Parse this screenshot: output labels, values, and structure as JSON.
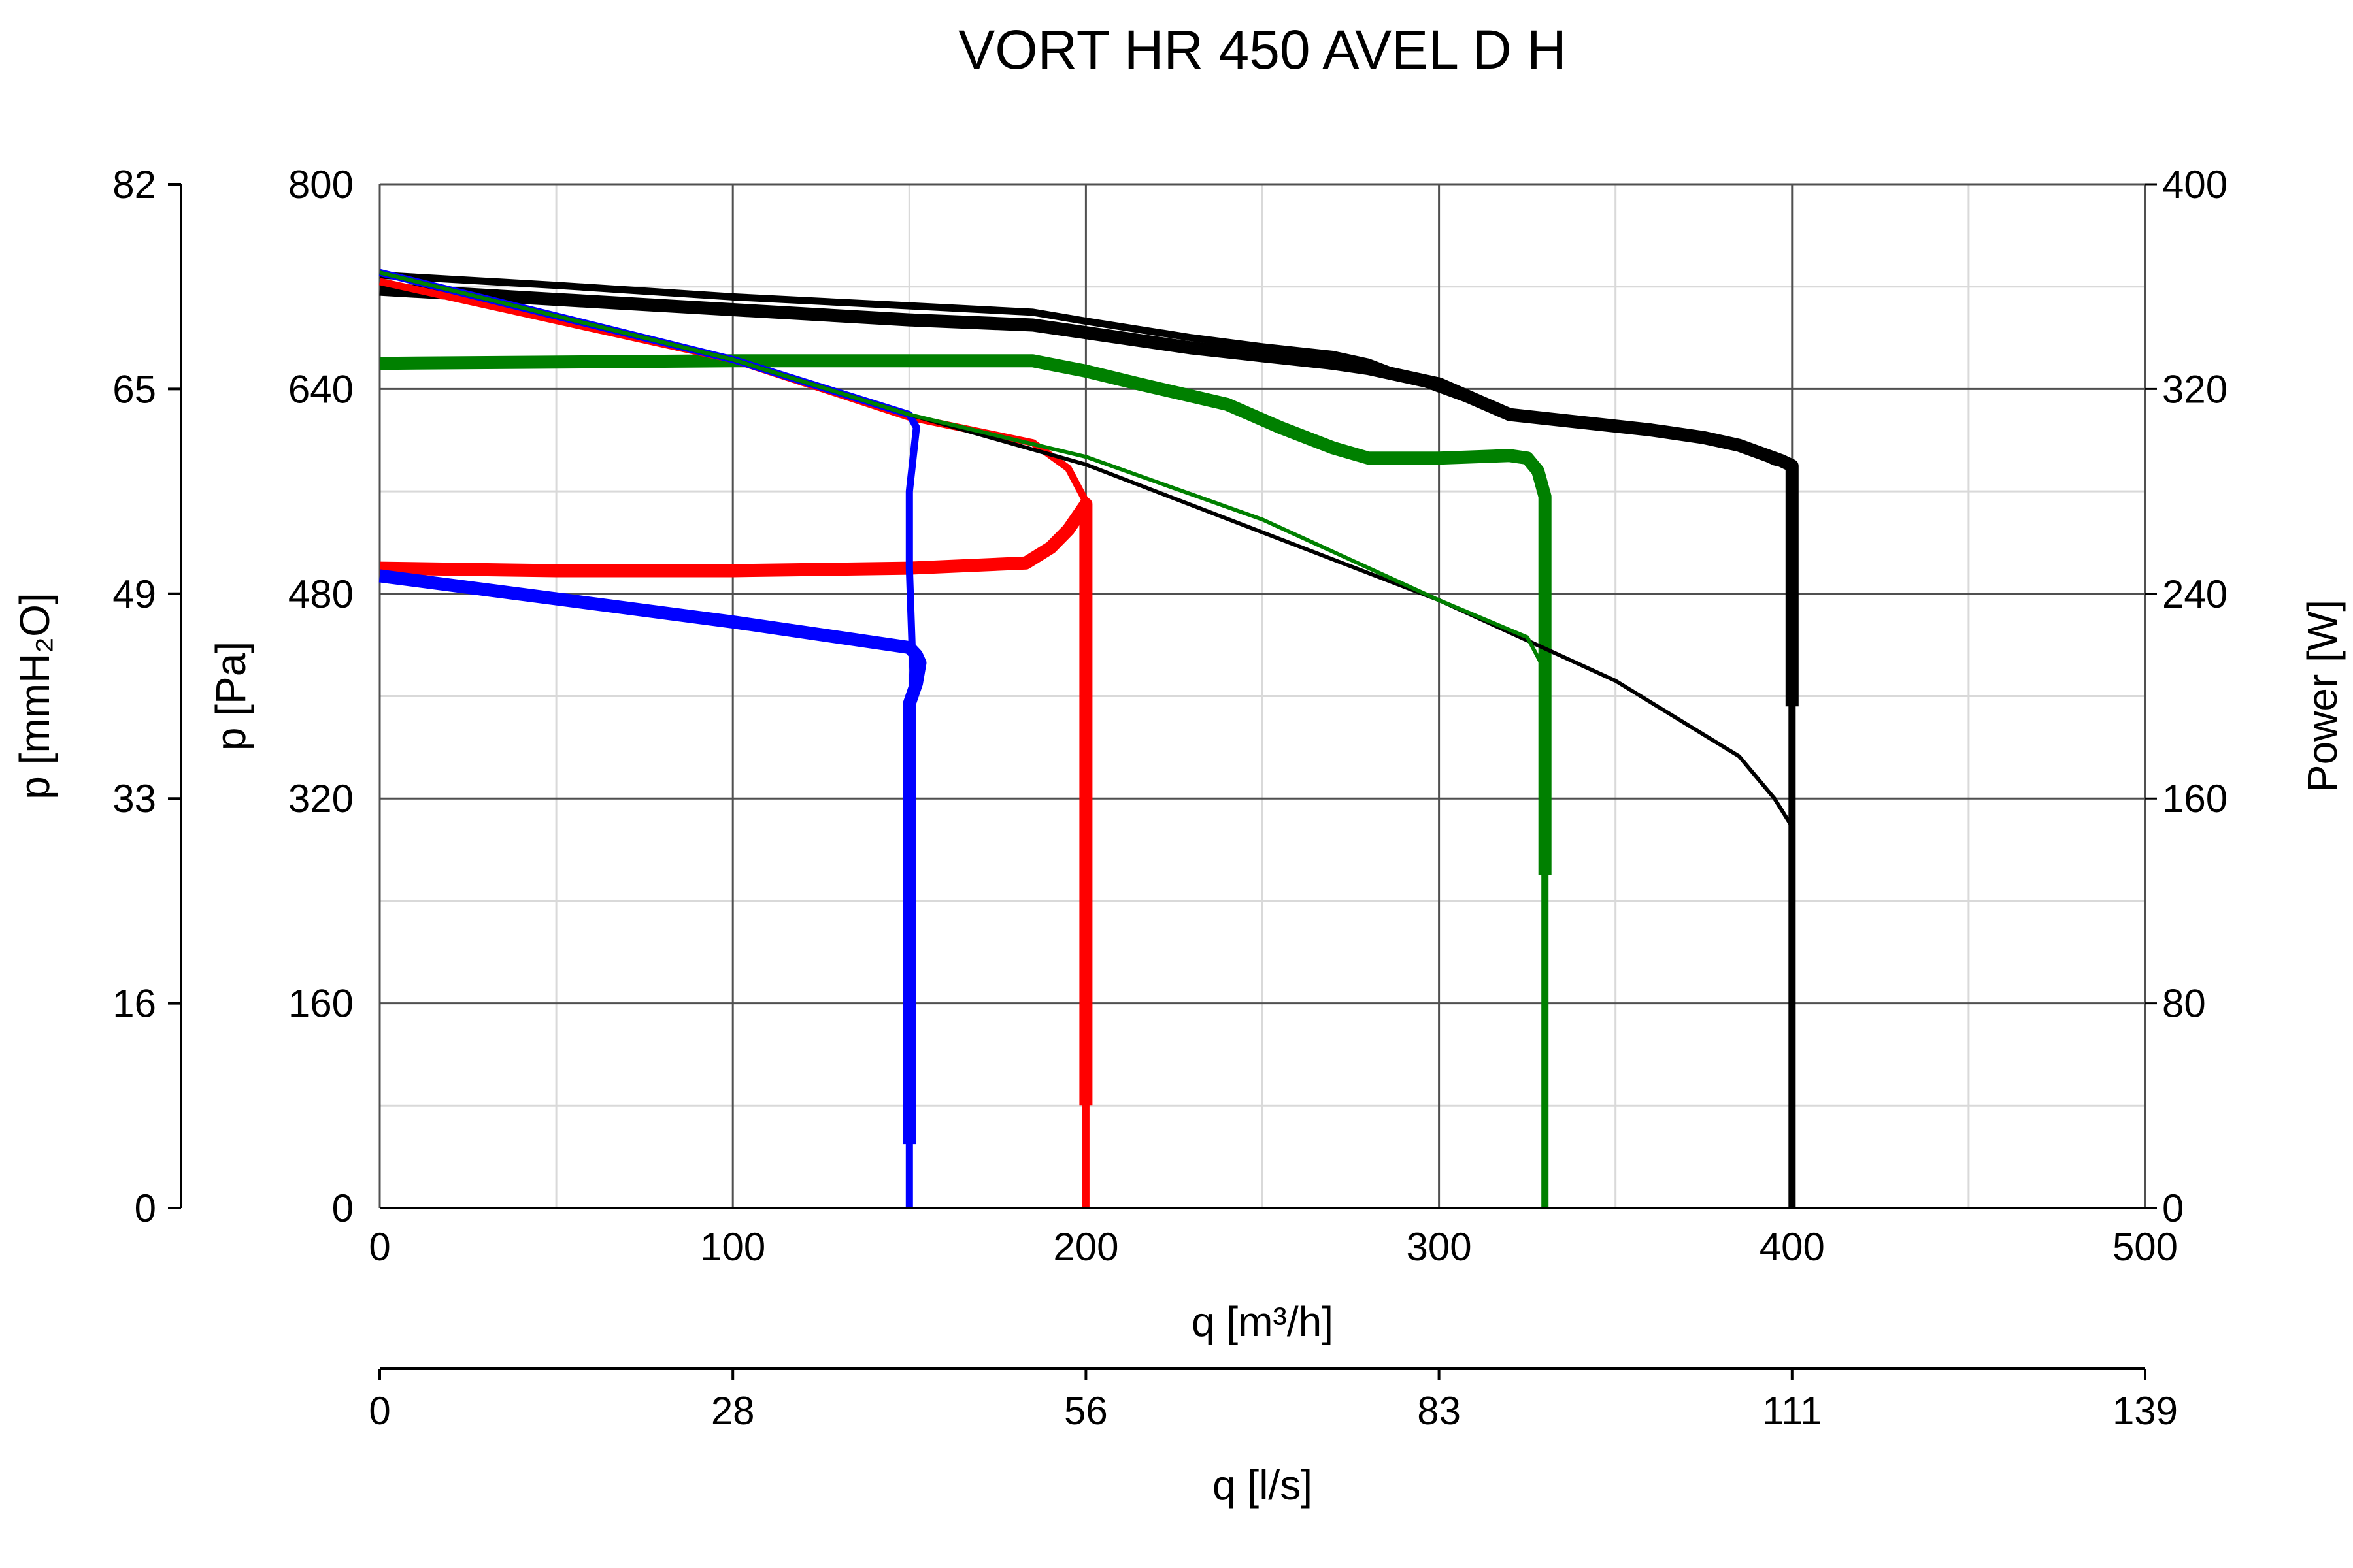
{
  "chart_data": {
    "type": "line",
    "title": "VORT HR 450 AVEL D H",
    "xlabel": "q [m³/h]",
    "xlim": [
      0,
      500
    ],
    "xticks": [
      "0",
      "100",
      "200",
      "300",
      "400",
      "500"
    ],
    "x2label": "q [l/s]",
    "x2ticks": [
      "0",
      "28",
      "56",
      "83",
      "111",
      "139"
    ],
    "ylabel": "p [Pa]",
    "ylim": [
      0,
      800
    ],
    "yticks": [
      "0",
      "160",
      "320",
      "480",
      "640",
      "800"
    ],
    "y2label": "p [mmH₂O]",
    "y2ticks": [
      "0",
      "16",
      "33",
      "49",
      "65",
      "82"
    ],
    "y3label": "Power [W]",
    "y3ticks": [
      "0",
      "80",
      "160",
      "240",
      "320",
      "400"
    ],
    "ylim_power": [
      0,
      400
    ],
    "grid": true,
    "series": [
      {
        "color": "#000000",
        "kind": "pressure",
        "points": [
          [
            0,
            729
          ],
          [
            50,
            721
          ],
          [
            100,
            712
          ],
          [
            150,
            705
          ],
          [
            185,
            700
          ],
          [
            200,
            693
          ],
          [
            230,
            680
          ],
          [
            250,
            673
          ],
          [
            270,
            667
          ],
          [
            280,
            661
          ],
          [
            300,
            640
          ],
          [
            320,
            620
          ],
          [
            340,
            613
          ],
          [
            360,
            608
          ],
          [
            375,
            602
          ],
          [
            385,
            596
          ],
          [
            395,
            583
          ],
          [
            400,
            580
          ],
          [
            400,
            0
          ]
        ]
      },
      {
        "color": "#000000",
        "kind": "power",
        "points": [
          [
            0,
            359
          ],
          [
            50,
            355
          ],
          [
            100,
            351
          ],
          [
            150,
            347
          ],
          [
            185,
            345
          ],
          [
            200,
            342
          ],
          [
            230,
            336
          ],
          [
            250,
            333
          ],
          [
            270,
            330
          ],
          [
            280,
            328
          ],
          [
            300,
            322
          ],
          [
            320,
            310
          ],
          [
            340,
            307
          ],
          [
            360,
            304
          ],
          [
            375,
            301
          ],
          [
            385,
            298
          ],
          [
            397,
            292
          ],
          [
            400,
            290
          ],
          [
            400,
            196
          ]
        ]
      },
      {
        "color": "#008000",
        "kind": "pressure",
        "points": [
          [
            0,
            660
          ],
          [
            100,
            663
          ],
          [
            150,
            664
          ],
          [
            185,
            661
          ],
          [
            200,
            653
          ],
          [
            215,
            645
          ],
          [
            240,
            628
          ],
          [
            255,
            610
          ],
          [
            270,
            595
          ],
          [
            280,
            586
          ],
          [
            300,
            585
          ],
          [
            320,
            586
          ],
          [
            325,
            586
          ],
          [
            328,
            575
          ],
          [
            330,
            552
          ],
          [
            330,
            0
          ]
        ]
      },
      {
        "color": "#008000",
        "kind": "power",
        "points": [
          [
            0,
            330
          ],
          [
            100,
            331
          ],
          [
            150,
            331
          ],
          [
            185,
            331
          ],
          [
            200,
            327
          ],
          [
            215,
            322
          ],
          [
            240,
            314
          ],
          [
            255,
            305
          ],
          [
            270,
            297
          ],
          [
            280,
            293
          ],
          [
            300,
            293
          ],
          [
            320,
            294
          ],
          [
            325,
            293
          ],
          [
            328,
            288
          ],
          [
            330,
            278
          ],
          [
            330,
            130
          ]
        ]
      },
      {
        "color": "#ff0000",
        "kind": "pressure",
        "points": [
          [
            0,
            724
          ],
          [
            100,
            663
          ],
          [
            150,
            618
          ],
          [
            185,
            598
          ],
          [
            195,
            578
          ],
          [
            200,
            552
          ],
          [
            200,
            0
          ]
        ]
      },
      {
        "color": "#ff0000",
        "kind": "power",
        "points": [
          [
            0,
            250
          ],
          [
            50,
            249
          ],
          [
            100,
            249
          ],
          [
            150,
            250
          ],
          [
            183,
            252
          ],
          [
            190,
            258
          ],
          [
            195,
            265
          ],
          [
            200,
            275
          ],
          [
            200,
            40
          ]
        ]
      },
      {
        "color": "#0000ff",
        "kind": "pressure",
        "points": [
          [
            0,
            731
          ],
          [
            100,
            663
          ],
          [
            150,
            620
          ],
          [
            152,
            610
          ],
          [
            150,
            560
          ],
          [
            150,
            500
          ],
          [
            151,
            420
          ],
          [
            150,
            330
          ],
          [
            150,
            0
          ]
        ]
      },
      {
        "color": "#0000ff",
        "kind": "power",
        "points": [
          [
            0,
            247
          ],
          [
            50,
            238
          ],
          [
            100,
            229
          ],
          [
            150,
            219
          ],
          [
            152,
            216
          ],
          [
            153,
            213
          ],
          [
            152,
            205
          ],
          [
            150,
            197
          ],
          [
            150,
            25
          ]
        ]
      },
      {
        "color": "#000000",
        "kind": "system",
        "points": [
          [
            0,
            731
          ],
          [
            100,
            663
          ],
          [
            150,
            620
          ],
          [
            200,
            581
          ],
          [
            250,
            528
          ],
          [
            300,
            475
          ],
          [
            350,
            412
          ],
          [
            385,
            353
          ],
          [
            395,
            320
          ],
          [
            400,
            298
          ],
          [
            400,
            0
          ]
        ]
      },
      {
        "color": "#008000",
        "kind": "system",
        "points": [
          [
            0,
            731
          ],
          [
            100,
            663
          ],
          [
            150,
            620
          ],
          [
            200,
            587
          ],
          [
            250,
            538
          ],
          [
            300,
            475
          ],
          [
            325,
            446
          ],
          [
            330,
            420
          ]
        ]
      }
    ]
  }
}
